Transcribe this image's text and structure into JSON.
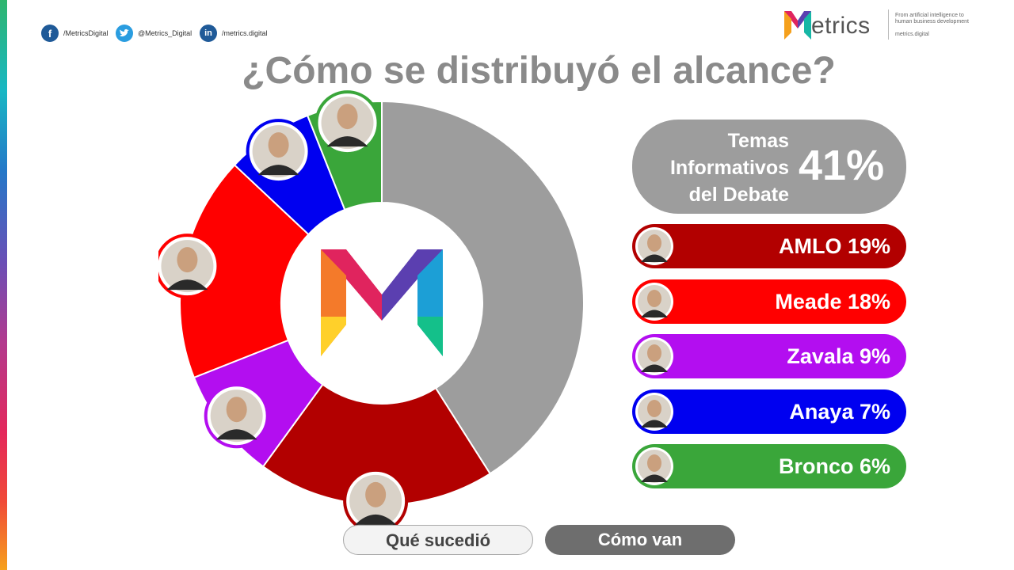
{
  "header": {
    "social": [
      {
        "icon": "facebook-icon",
        "glyph": "f",
        "text": "/MetricsDigital"
      },
      {
        "icon": "twitter-icon",
        "glyph": "t",
        "text": "@Metrics_Digital"
      },
      {
        "icon": "linkedin-icon",
        "glyph": "in",
        "text": "/metrics.digital"
      }
    ],
    "brand": {
      "name": "etrics",
      "tagline": "From artificial intelligence to human business development",
      "url": "metrics.digital"
    }
  },
  "title": "¿Cómo se distribuyó el alcance?",
  "chart_data": {
    "type": "pie",
    "donut": true,
    "start": "top, clockwise",
    "slices": [
      {
        "label": "Temas Informativos del Debate",
        "value": 41,
        "color": "#9d9d9d"
      },
      {
        "label": "AMLO",
        "value": 19,
        "color": "#b20000"
      },
      {
        "label": "Zavala",
        "value": 9,
        "color": "#b30ef0"
      },
      {
        "label": "Meade",
        "value": 18,
        "color": "#ff0000"
      },
      {
        "label": "Anaya",
        "value": 7,
        "color": "#0000f0"
      },
      {
        "label": "Bronco",
        "value": 6,
        "color": "#3aa63a"
      }
    ]
  },
  "legend": {
    "head": {
      "label_lines": [
        "Temas",
        "Informativos",
        "del Debate"
      ],
      "value": "41%"
    },
    "items": [
      {
        "text": "AMLO 19%",
        "color": "#b20000"
      },
      {
        "text": "Meade 18%",
        "color": "#ff0000"
      },
      {
        "text": "Zavala 9%",
        "color": "#b30ef0"
      },
      {
        "text": "Anaya 7%",
        "color": "#0000f0"
      },
      {
        "text": "Bronco 6%",
        "color": "#3aa63a"
      }
    ]
  },
  "buttons": {
    "what_happened": "Qué sucedió",
    "how_going": "Cómo van"
  }
}
